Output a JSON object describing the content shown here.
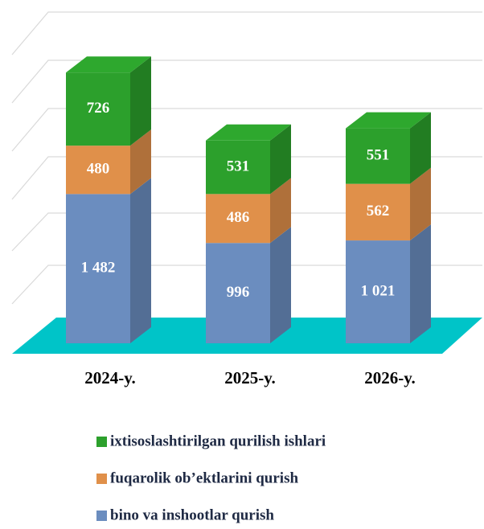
{
  "chart_data": {
    "type": "bar3d_stacked",
    "categories": [
      "2024-y.",
      "2025-y.",
      "2026-y."
    ],
    "series": [
      {
        "name": "bino va inshootlar qurish",
        "color": "#6b8dbf",
        "values": [
          1482,
          996,
          1021
        ],
        "value_labels": [
          "1 482",
          "996",
          "1 021"
        ]
      },
      {
        "name": "fuqarolik ob’ektlarini qurish",
        "color": "#e0904a",
        "values": [
          480,
          486,
          562
        ],
        "value_labels": [
          "480",
          "486",
          "562"
        ]
      },
      {
        "name": "ixtisoslashtirilgan qurilish ishlari",
        "color": "#2ca02c",
        "values": [
          726,
          531,
          551
        ],
        "value_labels": [
          "726",
          "531",
          "551"
        ]
      }
    ],
    "ylim": [
      0,
      3400
    ]
  }
}
